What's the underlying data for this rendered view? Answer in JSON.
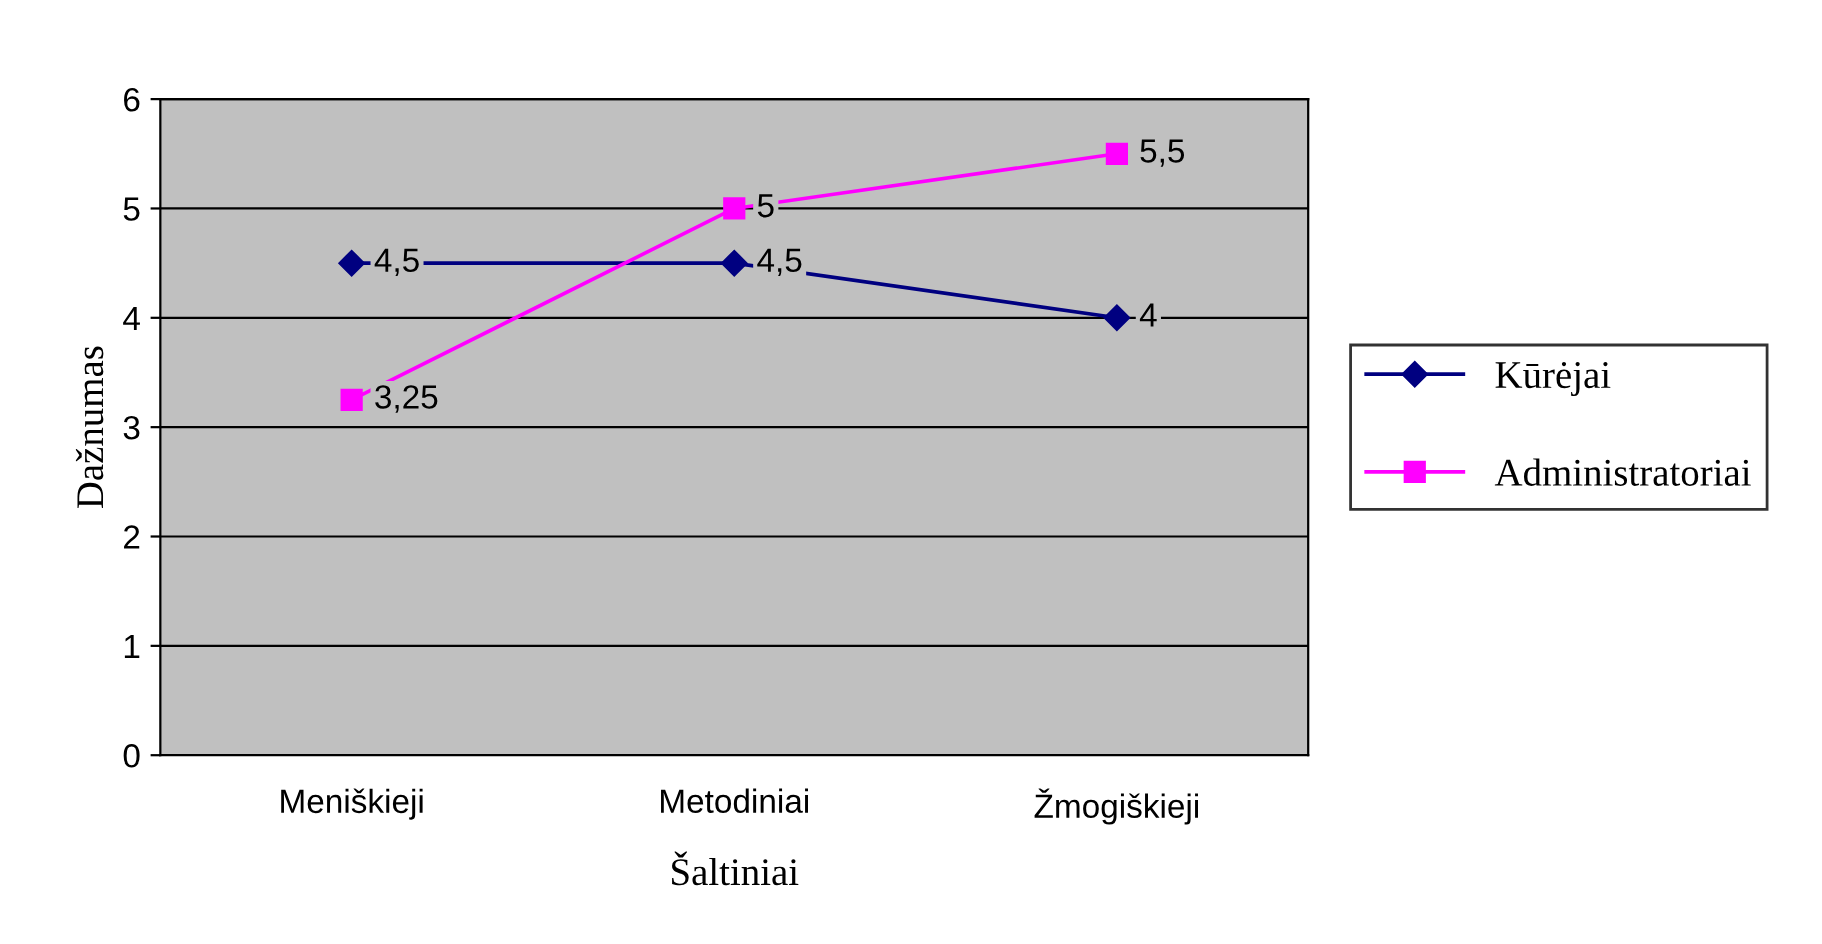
{
  "chart_data": {
    "type": "line",
    "xlabel": "Šaltiniai",
    "ylabel": "Dažnumas",
    "categories": [
      "Meniškieji",
      "Metodiniai",
      "Žmogiškieji"
    ],
    "series": [
      {
        "name": "Kūrėjai",
        "color": "#000080",
        "values": [
          4.5,
          4.5,
          4
        ],
        "marker": "diamond",
        "value_labels": [
          "4,5",
          "4,5",
          "4"
        ]
      },
      {
        "name": "Administratoriai",
        "color": "#ff00ff",
        "values": [
          3.25,
          5,
          5.5
        ],
        "marker": "square",
        "value_labels": [
          "3,25",
          "5",
          "5,5"
        ]
      }
    ],
    "ylim": [
      0,
      6
    ],
    "yticks": [
      0,
      1,
      2,
      3,
      4,
      5,
      6
    ],
    "grid": "y",
    "legend": "right",
    "line_style": "solid"
  }
}
